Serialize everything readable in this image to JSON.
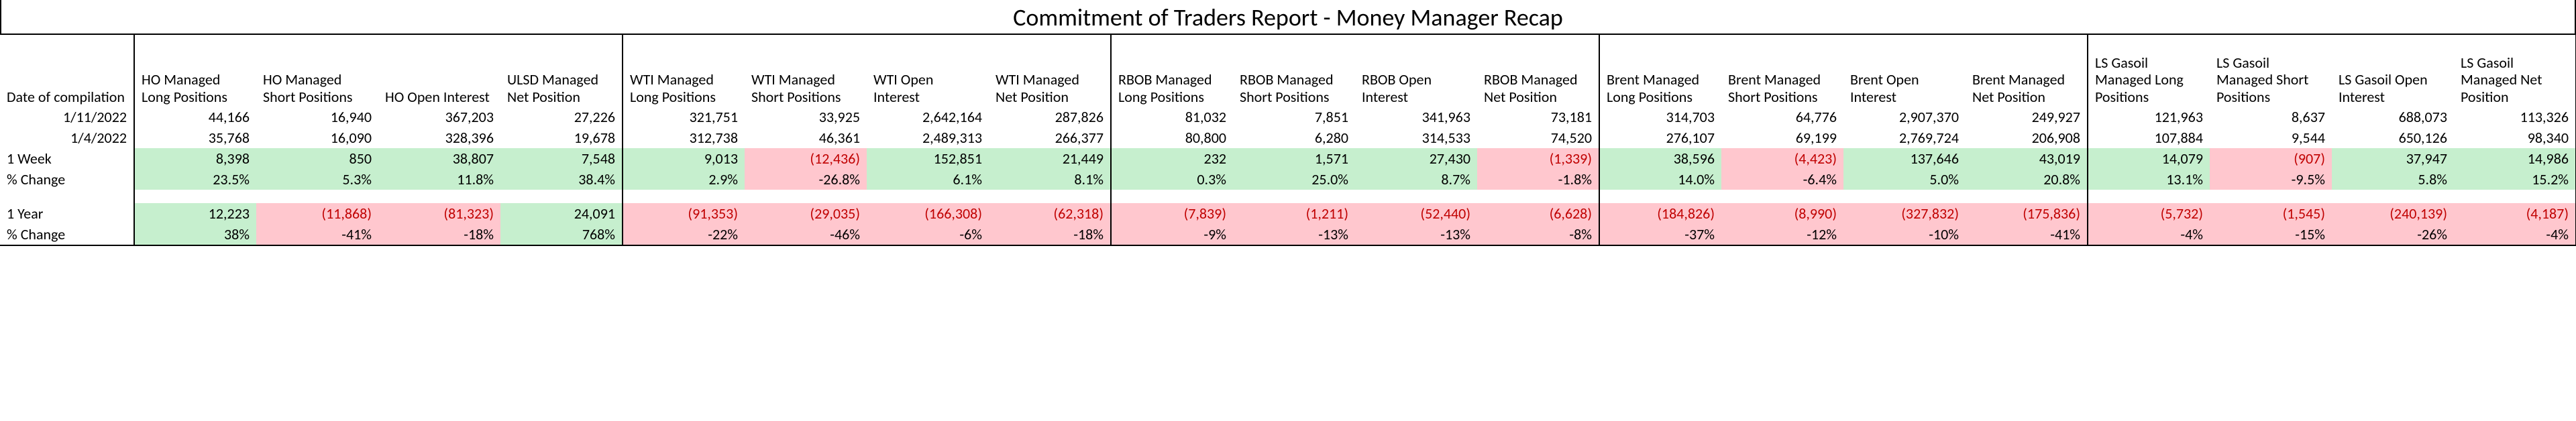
{
  "title": "Commitment of Traders Report - Money Manager Recap",
  "colors": {
    "green": "#c6efce",
    "red": "#ffc7ce",
    "neg_text": "#c00000"
  },
  "row_headers": {
    "date": "Date of compilation",
    "w1": "1 Week",
    "w1pct": "% Change",
    "y1": "1 Year",
    "y1pct": "% Change"
  },
  "dates": [
    "1/11/2022",
    "1/4/2022"
  ],
  "groups": [
    {
      "cols": [
        {
          "h": "HO Managed Long Positions"
        },
        {
          "h": "HO Managed Short Positions"
        },
        {
          "h": "HO Open Interest"
        },
        {
          "h": "ULSD Managed Net Position"
        }
      ],
      "d0": [
        "44,166",
        "16,940",
        "367,203",
        "27,226"
      ],
      "d1": [
        "35,768",
        "16,090",
        "328,396",
        "19,678"
      ],
      "w1": [
        {
          "v": "8,398",
          "c": "g"
        },
        {
          "v": "850",
          "c": "g"
        },
        {
          "v": "38,807",
          "c": "g"
        },
        {
          "v": "7,548",
          "c": "g"
        }
      ],
      "w1p": [
        {
          "v": "23.5%",
          "c": "g"
        },
        {
          "v": "5.3%",
          "c": "g"
        },
        {
          "v": "11.8%",
          "c": "g"
        },
        {
          "v": "38.4%",
          "c": "g"
        }
      ],
      "y1": [
        {
          "v": "12,223",
          "c": "g"
        },
        {
          "v": "(11,868)",
          "c": "r",
          "n": 1
        },
        {
          "v": "(81,323)",
          "c": "r",
          "n": 1
        },
        {
          "v": "24,091",
          "c": "g"
        }
      ],
      "y1p": [
        {
          "v": "38%",
          "c": "g"
        },
        {
          "v": "-41%",
          "c": "r"
        },
        {
          "v": "-18%",
          "c": "r"
        },
        {
          "v": "768%",
          "c": "g"
        }
      ]
    },
    {
      "cols": [
        {
          "h": "WTI Managed Long Positions"
        },
        {
          "h": "WTI Managed Short Positions"
        },
        {
          "h": "WTI Open Interest"
        },
        {
          "h": "WTI Managed Net Position"
        }
      ],
      "d0": [
        "321,751",
        "33,925",
        "2,642,164",
        "287,826"
      ],
      "d1": [
        "312,738",
        "46,361",
        "2,489,313",
        "266,377"
      ],
      "w1": [
        {
          "v": "9,013",
          "c": "g"
        },
        {
          "v": "(12,436)",
          "c": "r",
          "n": 1
        },
        {
          "v": "152,851",
          "c": "g"
        },
        {
          "v": "21,449",
          "c": "g"
        }
      ],
      "w1p": [
        {
          "v": "2.9%",
          "c": "g"
        },
        {
          "v": "-26.8%",
          "c": "r"
        },
        {
          "v": "6.1%",
          "c": "g"
        },
        {
          "v": "8.1%",
          "c": "g"
        }
      ],
      "y1": [
        {
          "v": "(91,353)",
          "c": "r",
          "n": 1
        },
        {
          "v": "(29,035)",
          "c": "r",
          "n": 1
        },
        {
          "v": "(166,308)",
          "c": "r",
          "n": 1
        },
        {
          "v": "(62,318)",
          "c": "r",
          "n": 1
        }
      ],
      "y1p": [
        {
          "v": "-22%",
          "c": "r"
        },
        {
          "v": "-46%",
          "c": "r"
        },
        {
          "v": "-6%",
          "c": "r"
        },
        {
          "v": "-18%",
          "c": "r"
        }
      ]
    },
    {
      "cols": [
        {
          "h": "RBOB Managed Long Positions"
        },
        {
          "h": "RBOB Managed Short Positions"
        },
        {
          "h": "RBOB Open Interest"
        },
        {
          "h": "RBOB Managed Net Position"
        }
      ],
      "d0": [
        "81,032",
        "7,851",
        "341,963",
        "73,181"
      ],
      "d1": [
        "80,800",
        "6,280",
        "314,533",
        "74,520"
      ],
      "w1": [
        {
          "v": "232",
          "c": "g"
        },
        {
          "v": "1,571",
          "c": "g"
        },
        {
          "v": "27,430",
          "c": "g"
        },
        {
          "v": "(1,339)",
          "c": "r",
          "n": 1
        }
      ],
      "w1p": [
        {
          "v": "0.3%",
          "c": "g"
        },
        {
          "v": "25.0%",
          "c": "g"
        },
        {
          "v": "8.7%",
          "c": "g"
        },
        {
          "v": "-1.8%",
          "c": "r"
        }
      ],
      "y1": [
        {
          "v": "(7,839)",
          "c": "r",
          "n": 1
        },
        {
          "v": "(1,211)",
          "c": "r",
          "n": 1
        },
        {
          "v": "(52,440)",
          "c": "r",
          "n": 1
        },
        {
          "v": "(6,628)",
          "c": "r",
          "n": 1
        }
      ],
      "y1p": [
        {
          "v": "-9%",
          "c": "r"
        },
        {
          "v": "-13%",
          "c": "r"
        },
        {
          "v": "-13%",
          "c": "r"
        },
        {
          "v": "-8%",
          "c": "r"
        }
      ]
    },
    {
      "cols": [
        {
          "h": "Brent Managed Long Positions"
        },
        {
          "h": "Brent Managed Short Positions"
        },
        {
          "h": "Brent Open Interest"
        },
        {
          "h": "Brent Managed Net Position"
        }
      ],
      "d0": [
        "314,703",
        "64,776",
        "2,907,370",
        "249,927"
      ],
      "d1": [
        "276,107",
        "69,199",
        "2,769,724",
        "206,908"
      ],
      "w1": [
        {
          "v": "38,596",
          "c": "g"
        },
        {
          "v": "(4,423)",
          "c": "r",
          "n": 1
        },
        {
          "v": "137,646",
          "c": "g"
        },
        {
          "v": "43,019",
          "c": "g"
        }
      ],
      "w1p": [
        {
          "v": "14.0%",
          "c": "g"
        },
        {
          "v": "-6.4%",
          "c": "r"
        },
        {
          "v": "5.0%",
          "c": "g"
        },
        {
          "v": "20.8%",
          "c": "g"
        }
      ],
      "y1": [
        {
          "v": "(184,826)",
          "c": "r",
          "n": 1
        },
        {
          "v": "(8,990)",
          "c": "r",
          "n": 1
        },
        {
          "v": "(327,832)",
          "c": "r",
          "n": 1
        },
        {
          "v": "(175,836)",
          "c": "r",
          "n": 1
        }
      ],
      "y1p": [
        {
          "v": "-37%",
          "c": "r"
        },
        {
          "v": "-12%",
          "c": "r"
        },
        {
          "v": "-10%",
          "c": "r"
        },
        {
          "v": "-41%",
          "c": "r"
        }
      ]
    },
    {
      "cols": [
        {
          "h": "LS Gasoil Managed Long Positions"
        },
        {
          "h": "LS Gasoil Managed Short Positions"
        },
        {
          "h": "LS Gasoil Open Interest"
        },
        {
          "h": "LS Gasoil Managed Net Position"
        }
      ],
      "d0": [
        "121,963",
        "8,637",
        "688,073",
        "113,326"
      ],
      "d1": [
        "107,884",
        "9,544",
        "650,126",
        "98,340"
      ],
      "w1": [
        {
          "v": "14,079",
          "c": "g"
        },
        {
          "v": "(907)",
          "c": "r",
          "n": 1
        },
        {
          "v": "37,947",
          "c": "g"
        },
        {
          "v": "14,986",
          "c": "g"
        }
      ],
      "w1p": [
        {
          "v": "13.1%",
          "c": "g"
        },
        {
          "v": "-9.5%",
          "c": "r"
        },
        {
          "v": "5.8%",
          "c": "g"
        },
        {
          "v": "15.2%",
          "c": "g"
        }
      ],
      "y1": [
        {
          "v": "(5,732)",
          "c": "r",
          "n": 1
        },
        {
          "v": "(1,545)",
          "c": "r",
          "n": 1
        },
        {
          "v": "(240,139)",
          "c": "r",
          "n": 1
        },
        {
          "v": "(4,187)",
          "c": "r",
          "n": 1
        }
      ],
      "y1p": [
        {
          "v": "-4%",
          "c": "r"
        },
        {
          "v": "-15%",
          "c": "r"
        },
        {
          "v": "-26%",
          "c": "r"
        },
        {
          "v": "-4%",
          "c": "r"
        }
      ]
    }
  ]
}
